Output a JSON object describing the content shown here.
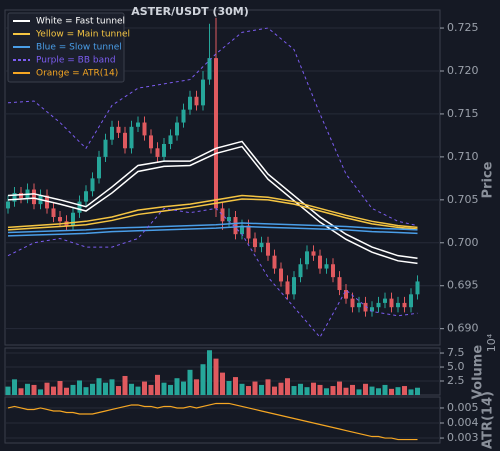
{
  "chart_data": [
    {
      "type": "candlestick",
      "title": "ASTER/USDT (30M)",
      "ylabel": "Price",
      "ylim": [
        0.6881,
        0.7271
      ],
      "yticks": [
        {
          "value": 0.69,
          "label": "0.690"
        },
        0.695,
        {
          "value": 0.7,
          "label": "0.700"
        },
        0.705,
        {
          "value": 0.71,
          "label": "0.710"
        },
        0.715,
        {
          "value": 0.72,
          "label": "0.720"
        },
        0.725
      ],
      "grid": true,
      "legend": "upper left",
      "up_color": "#26a69a",
      "down_color": "#e05a5f",
      "open": [
        0.704,
        0.7048,
        0.7058,
        0.7052,
        0.7062,
        0.7045,
        0.7055,
        0.704,
        0.703,
        0.7025,
        0.702,
        0.7035,
        0.7048,
        0.706,
        0.7075,
        0.71,
        0.712,
        0.7135,
        0.7128,
        0.711,
        0.7135,
        0.714,
        0.7125,
        0.711,
        0.71,
        0.7115,
        0.7125,
        0.714,
        0.7155,
        0.717,
        0.716,
        0.719,
        0.7215,
        0.704,
        0.7025,
        0.703,
        0.701,
        0.702,
        0.7005,
        0.6995,
        0.7,
        0.6985,
        0.697,
        0.6955,
        0.694,
        0.696,
        0.6975,
        0.699,
        0.6985,
        0.697,
        0.6975,
        0.696,
        0.6945,
        0.6935,
        0.6925,
        0.693,
        0.692,
        0.6925,
        0.693,
        0.6935,
        0.6925,
        0.693,
        0.6925,
        0.694
      ],
      "high": [
        0.7055,
        0.7065,
        0.7065,
        0.7069,
        0.7069,
        0.7062,
        0.7062,
        0.7047,
        0.7037,
        0.7032,
        0.7042,
        0.7055,
        0.7067,
        0.7082,
        0.7107,
        0.7127,
        0.7142,
        0.7142,
        0.7135,
        0.7142,
        0.7147,
        0.7147,
        0.7132,
        0.7117,
        0.7122,
        0.7132,
        0.7147,
        0.7162,
        0.7177,
        0.7177,
        0.72,
        0.7255,
        0.7262,
        0.7047,
        0.704,
        0.7037,
        0.7027,
        0.7027,
        0.7012,
        0.7007,
        0.7007,
        0.6992,
        0.6977,
        0.6962,
        0.6967,
        0.6982,
        0.6997,
        0.6997,
        0.6992,
        0.6982,
        0.6982,
        0.6967,
        0.6952,
        0.6942,
        0.6937,
        0.6937,
        0.6932,
        0.6937,
        0.6942,
        0.6942,
        0.6937,
        0.6937,
        0.6947,
        0.6962
      ],
      "low": [
        0.7034,
        0.7042,
        0.7046,
        0.7046,
        0.7039,
        0.7039,
        0.7034,
        0.7024,
        0.7019,
        0.7014,
        0.7014,
        0.7029,
        0.7042,
        0.7054,
        0.7069,
        0.7094,
        0.7114,
        0.7122,
        0.7104,
        0.7104,
        0.7129,
        0.7119,
        0.7104,
        0.7094,
        0.7094,
        0.7109,
        0.7119,
        0.7134,
        0.7149,
        0.7154,
        0.7154,
        0.7184,
        0.703,
        0.7015,
        0.7019,
        0.7004,
        0.7004,
        0.6999,
        0.6989,
        0.6989,
        0.6979,
        0.6964,
        0.6949,
        0.6934,
        0.6934,
        0.6954,
        0.6969,
        0.6979,
        0.6964,
        0.6964,
        0.6954,
        0.6939,
        0.6929,
        0.6919,
        0.6919,
        0.6914,
        0.6914,
        0.6919,
        0.6924,
        0.6919,
        0.6919,
        0.6919,
        0.6919,
        0.6934
      ],
      "close": [
        0.7048,
        0.7058,
        0.7052,
        0.7062,
        0.7045,
        0.7055,
        0.704,
        0.703,
        0.7025,
        0.702,
        0.7035,
        0.7048,
        0.706,
        0.7075,
        0.71,
        0.712,
        0.7135,
        0.7128,
        0.711,
        0.7135,
        0.714,
        0.7125,
        0.711,
        0.71,
        0.7115,
        0.7125,
        0.714,
        0.7155,
        0.717,
        0.716,
        0.719,
        0.7215,
        0.704,
        0.7025,
        0.703,
        0.701,
        0.702,
        0.7005,
        0.6995,
        0.7,
        0.6985,
        0.697,
        0.6955,
        0.694,
        0.696,
        0.6975,
        0.699,
        0.6985,
        0.697,
        0.6975,
        0.696,
        0.6945,
        0.6935,
        0.6925,
        0.693,
        0.692,
        0.6925,
        0.693,
        0.6935,
        0.6925,
        0.693,
        0.6925,
        0.694,
        0.6955
      ],
      "line_x": [
        0,
        4,
        8,
        12,
        16,
        20,
        24,
        28,
        32,
        36,
        40,
        44,
        48,
        52,
        56,
        60,
        63
      ],
      "series": [
        {
          "name": "White = Fast tunnel",
          "color": "#ffffff",
          "dashed": false,
          "upper": [
            0.7055,
            0.7057,
            0.705,
            0.7042,
            0.7065,
            0.709,
            0.7095,
            0.7095,
            0.711,
            0.7118,
            0.708,
            0.7055,
            0.703,
            0.701,
            0.6995,
            0.6985,
            0.6982
          ],
          "lower": [
            0.705,
            0.7052,
            0.7045,
            0.7037,
            0.7058,
            0.7083,
            0.7089,
            0.709,
            0.7104,
            0.7112,
            0.7074,
            0.7049,
            0.7024,
            0.7004,
            0.6989,
            0.6979,
            0.6976
          ]
        },
        {
          "name": "Yellow = Main tunnel",
          "color": "#f5c542",
          "dashed": false,
          "upper": [
            0.7018,
            0.702,
            0.7022,
            0.7025,
            0.703,
            0.7038,
            0.7042,
            0.7045,
            0.705,
            0.7055,
            0.7053,
            0.7048,
            0.704,
            0.7032,
            0.7025,
            0.702,
            0.7018
          ],
          "lower": [
            0.7015,
            0.7017,
            0.7019,
            0.7021,
            0.7026,
            0.7033,
            0.7037,
            0.7041,
            0.7046,
            0.7051,
            0.705,
            0.7045,
            0.7037,
            0.7029,
            0.7022,
            0.7018,
            0.7016
          ]
        },
        {
          "name": "Blue = Slow tunnel",
          "color": "#4a9ee8",
          "dashed": false,
          "upper": [
            0.7012,
            0.7013,
            0.7014,
            0.7015,
            0.7017,
            0.7018,
            0.7019,
            0.702,
            0.7021,
            0.7023,
            0.7022,
            0.7021,
            0.702,
            0.7019,
            0.7017,
            0.7016,
            0.7015
          ],
          "lower": [
            0.7008,
            0.7009,
            0.701,
            0.7011,
            0.7013,
            0.7014,
            0.7015,
            0.7016,
            0.7017,
            0.7019,
            0.7018,
            0.7017,
            0.7016,
            0.7015,
            0.7013,
            0.7012,
            0.7011
          ]
        },
        {
          "name": "Purple = BB band",
          "color": "#7b5cf0",
          "dashed": true,
          "upper": [
            0.7163,
            0.7165,
            0.714,
            0.711,
            0.716,
            0.718,
            0.7185,
            0.719,
            0.722,
            0.7245,
            0.725,
            0.7225,
            0.715,
            0.708,
            0.704,
            0.7025,
            0.702
          ],
          "lower": [
            0.6985,
            0.7,
            0.7005,
            0.6995,
            0.6995,
            0.7005,
            0.704,
            0.7035,
            0.704,
            0.701,
            0.696,
            0.6925,
            0.689,
            0.6945,
            0.692,
            0.6915,
            0.6918
          ]
        }
      ]
    },
    {
      "type": "bar",
      "ylabel": "Volume",
      "scale_label": "10⁴",
      "ylim": [
        0,
        8.4
      ],
      "yticks": [
        2.5,
        {
          "value": 5,
          "label": "5.0"
        },
        7.5
      ],
      "grid": true,
      "values": [
        1.5,
        2.8,
        1.2,
        2.0,
        1.8,
        1.0,
        2.2,
        1.5,
        2.5,
        1.3,
        1.8,
        2.6,
        1.4,
        2.0,
        3.0,
        2.2,
        2.8,
        1.6,
        3.4,
        2.0,
        1.5,
        2.4,
        1.8,
        3.6,
        2.2,
        1.8,
        3.0,
        2.4,
        4.5,
        2.8,
        5.5,
        8.0,
        6.5,
        4.0,
        2.5,
        3.2,
        2.0,
        1.6,
        2.4,
        1.8,
        2.8,
        1.5,
        2.2,
        3.0,
        1.6,
        2.0,
        1.4,
        2.2,
        1.8,
        1.2,
        1.6,
        2.4,
        1.3,
        1.8,
        1.0,
        2.0,
        1.5,
        1.2,
        1.8,
        1.1,
        1.4,
        1.6,
        1.0,
        1.3
      ]
    },
    {
      "type": "line",
      "ylabel": "ATR(14)",
      "ylim": [
        0.00267,
        0.00573
      ],
      "yticks": [
        0.003,
        0.004,
        0.005
      ],
      "grid": true,
      "series": [
        {
          "name": "Orange = ATR(14)",
          "color": "#f5a623",
          "values": [
            0.005,
            0.0051,
            0.005,
            0.0049,
            0.0049,
            0.005,
            0.0049,
            0.0048,
            0.0048,
            0.0047,
            0.0047,
            0.0046,
            0.0046,
            0.0046,
            0.0047,
            0.0048,
            0.0049,
            0.005,
            0.0051,
            0.0052,
            0.0052,
            0.0051,
            0.0051,
            0.005,
            0.0051,
            0.0051,
            0.005,
            0.005,
            0.0051,
            0.005,
            0.0051,
            0.0052,
            0.0053,
            0.0053,
            0.0053,
            0.0052,
            0.0051,
            0.005,
            0.0049,
            0.0048,
            0.0047,
            0.0046,
            0.0045,
            0.0044,
            0.0043,
            0.0042,
            0.0041,
            0.004,
            0.0039,
            0.0038,
            0.0037,
            0.0036,
            0.0035,
            0.0034,
            0.0033,
            0.0032,
            0.0031,
            0.0031,
            0.003,
            0.003,
            0.0029,
            0.0029,
            0.0029,
            0.0029
          ]
        }
      ]
    }
  ]
}
